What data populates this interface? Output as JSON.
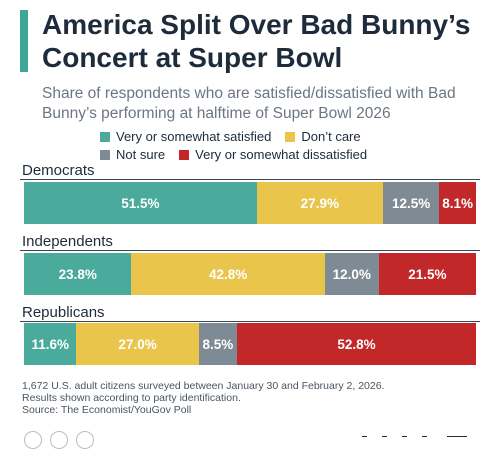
{
  "title": "America Split Over Bad Bunny’s Concert at Super Bowl",
  "subtitle": "Share of respondents who are satisfied/dissatisfied with Bad Bunny’s performing at halftime of Super Bowl 2026",
  "colors": {
    "accent": "#3fa79a",
    "satisfied": "#4aaa9b",
    "dont_care": "#e9c54c",
    "not_sure": "#7e8b95",
    "dissatisfied": "#c2282a"
  },
  "chart_data": {
    "type": "bar",
    "orientation": "horizontal",
    "stacked": true,
    "unit": "%",
    "legend_position": "top",
    "categories": [
      "Democrats",
      "Independents",
      "Republicans"
    ],
    "series": [
      {
        "name": "Very or somewhat satisfied",
        "color": "#4aaa9b",
        "values": [
          51.5,
          23.8,
          11.6
        ],
        "labels": [
          "51.5%",
          "23.8%",
          "11.6%"
        ]
      },
      {
        "name": "Don’t care",
        "color": "#e9c54c",
        "values": [
          27.9,
          42.8,
          27.0
        ],
        "labels": [
          "27.9%",
          "42.8%",
          "27.0%"
        ]
      },
      {
        "name": "Not sure",
        "color": "#7e8b95",
        "values": [
          12.5,
          12.0,
          8.5
        ],
        "labels": [
          "12.5%",
          "12.0%",
          "8.5%"
        ]
      },
      {
        "name": "Very or somewhat dissatisfied",
        "color": "#c2282a",
        "values": [
          8.1,
          21.5,
          52.8
        ],
        "labels": [
          "8.1%",
          "21.5%",
          "52.8%"
        ]
      }
    ]
  },
  "footnote": {
    "line1": "1,672 U.S. adult citizens surveyed between January 30 and February 2, 2026.",
    "line2": "Results shown according to party identification.",
    "source": "Source: The Economist/YouGov Poll"
  }
}
